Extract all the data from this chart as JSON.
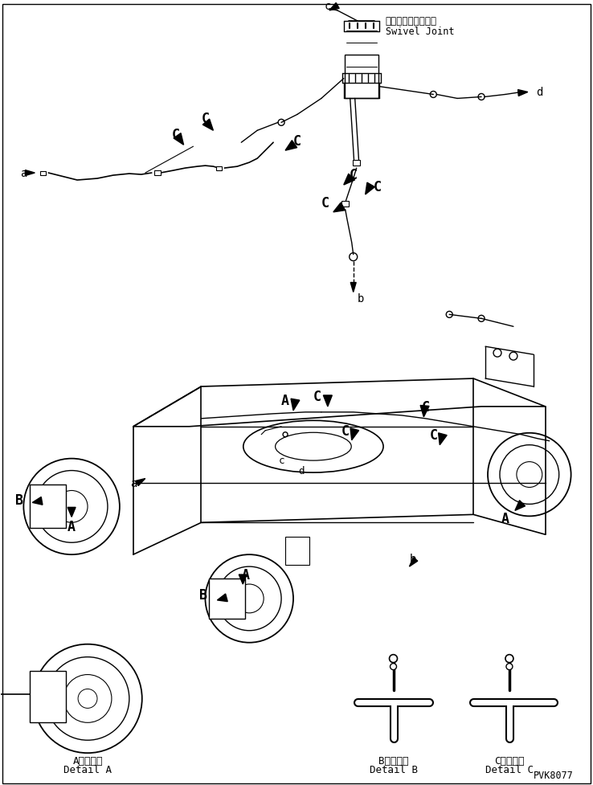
{
  "background": "#ffffff",
  "line_color": "#000000",
  "part_number": "PVK8077",
  "labels": {
    "swivel_jp": "スイベルジョイント",
    "swivel_en": "Swivel Joint",
    "detail_a_jp": "A　詳　細",
    "detail_a_en": "Detail A",
    "detail_b_jp": "B　詳　細",
    "detail_b_en": "Detail B",
    "detail_c_jp": "C　詳　細",
    "detail_c_en": "Detail C"
  },
  "figsize": [
    7.38,
    9.78
  ],
  "dpi": 100
}
